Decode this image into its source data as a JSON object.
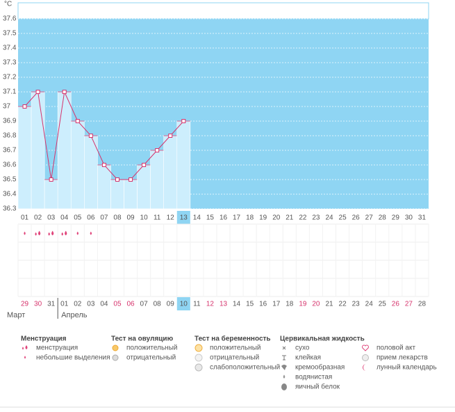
{
  "chart_data": {
    "type": "line",
    "y_unit": "°C",
    "ylim": [
      36.3,
      37.6
    ],
    "yticks": [
      36.3,
      36.4,
      36.5,
      36.6,
      36.7,
      36.8,
      36.9,
      37,
      37.1,
      37.2,
      37.3,
      37.4,
      37.5,
      37.6
    ],
    "grid": true,
    "categories": [
      "01",
      "02",
      "03",
      "04",
      "05",
      "06",
      "07",
      "08",
      "09",
      "10",
      "11",
      "12",
      "13",
      "14",
      "15",
      "16",
      "17",
      "18",
      "19",
      "20",
      "21",
      "22",
      "23",
      "24",
      "25",
      "26",
      "27",
      "28",
      "29",
      "30",
      "31"
    ],
    "values": [
      37,
      37.1,
      36.5,
      37.1,
      36.9,
      36.8,
      36.6,
      36.5,
      36.5,
      36.6,
      36.7,
      36.8,
      36.9,
      null,
      null,
      null,
      null,
      null,
      null,
      null,
      null,
      null,
      null,
      null,
      null,
      null,
      null,
      null,
      null,
      null,
      null
    ],
    "color": "#d6336c",
    "bar_color": "#cdeefd",
    "background": "#8fd5f3",
    "highlight": "13",
    "menstruation": [
      "small",
      "big",
      "big",
      "big",
      "small",
      "small"
    ],
    "months": [
      {
        "name": "Март",
        "dates": [
          {
            "d": "29",
            "red": true
          },
          {
            "d": "30",
            "red": true
          },
          {
            "d": "31",
            "red": false
          }
        ]
      },
      {
        "name": "Апрель",
        "dates": [
          {
            "d": "01",
            "red": false
          },
          {
            "d": "02",
            "red": false
          },
          {
            "d": "03",
            "red": false
          },
          {
            "d": "04",
            "red": false
          },
          {
            "d": "05",
            "red": true
          },
          {
            "d": "06",
            "red": true
          },
          {
            "d": "07",
            "red": false
          },
          {
            "d": "08",
            "red": false
          },
          {
            "d": "09",
            "red": false
          },
          {
            "d": "10",
            "red": false,
            "today": true
          },
          {
            "d": "11",
            "red": false
          },
          {
            "d": "12",
            "red": true
          },
          {
            "d": "13",
            "red": true
          },
          {
            "d": "14",
            "red": false
          },
          {
            "d": "15",
            "red": false
          },
          {
            "d": "16",
            "red": false
          },
          {
            "d": "17",
            "red": false
          },
          {
            "d": "18",
            "red": false
          },
          {
            "d": "19",
            "red": true
          },
          {
            "d": "20",
            "red": true
          },
          {
            "d": "21",
            "red": false
          },
          {
            "d": "22",
            "red": false
          },
          {
            "d": "23",
            "red": false
          },
          {
            "d": "24",
            "red": false
          },
          {
            "d": "25",
            "red": false
          },
          {
            "d": "26",
            "red": true
          },
          {
            "d": "27",
            "red": true
          },
          {
            "d": "28",
            "red": false
          }
        ]
      }
    ]
  },
  "legend": [
    {
      "title": "Менструация",
      "items": [
        {
          "label": "менструация",
          "icon": "drop-big"
        },
        {
          "label": "небольшие выделения",
          "icon": "drop-small"
        }
      ]
    },
    {
      "title": "Тест на овуляцию",
      "items": [
        {
          "label": "положительный",
          "icon": "sun-yes"
        },
        {
          "label": "отрицательный",
          "icon": "sun-no"
        }
      ]
    },
    {
      "title": "Тест на беременность",
      "items": [
        {
          "label": "положительный",
          "icon": "circle-yes"
        },
        {
          "label": "отрицательный",
          "icon": "circle-no"
        },
        {
          "label": "слабоположительный",
          "icon": "circle-weak"
        }
      ]
    },
    {
      "title": "Цервикальная жидкость",
      "items": [
        {
          "label": "сухо",
          "icon": "x"
        },
        {
          "label": "клейкая",
          "icon": "t"
        },
        {
          "label": "кремообразная",
          "icon": "cream"
        },
        {
          "label": "водянистая",
          "icon": "drop-gray"
        },
        {
          "label": "яичный белок",
          "icon": "oval"
        }
      ]
    },
    {
      "items": [
        {
          "label": "половой акт",
          "icon": "heart"
        },
        {
          "label": "прием лекарств",
          "icon": "pill"
        },
        {
          "label": "лунный календарь",
          "icon": "moon"
        }
      ]
    }
  ]
}
